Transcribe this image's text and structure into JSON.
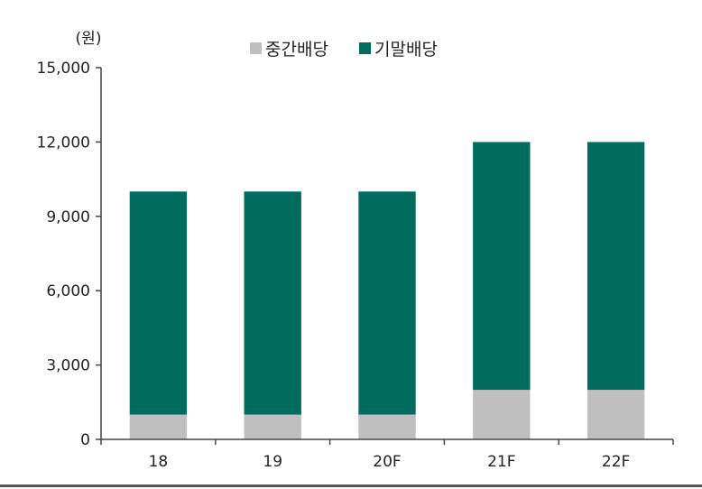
{
  "chart_data": {
    "type": "bar",
    "stacked": true,
    "unit": "(원)",
    "categories": [
      "18",
      "19",
      "20F",
      "21F",
      "22F"
    ],
    "series": [
      {
        "name": "중간배당",
        "color": "#bfbfbf",
        "values": [
          1000,
          1000,
          1000,
          2000,
          2000
        ]
      },
      {
        "name": "기말배당",
        "color": "#006b5f",
        "values": [
          9000,
          9000,
          9000,
          10000,
          10000
        ]
      }
    ],
    "yticks": [
      0,
      3000,
      6000,
      9000,
      12000,
      15000
    ],
    "ytick_labels": [
      "0",
      "3,000",
      "6,000",
      "9,000",
      "12,000",
      "15,000"
    ],
    "ylim": [
      0,
      15000
    ],
    "grid": false,
    "legend": "top-center"
  }
}
